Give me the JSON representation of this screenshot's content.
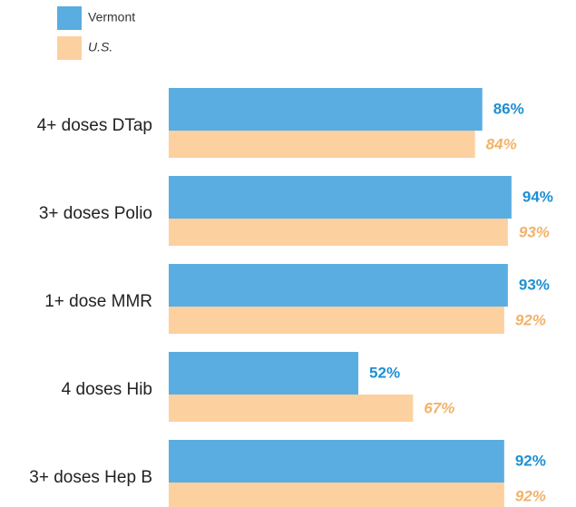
{
  "chart_data": {
    "type": "bar",
    "orientation": "horizontal",
    "categories": [
      "4+ doses DTap",
      "3+ doses Polio",
      "1+ dose MMR",
      "4 doses Hib",
      "3+ doses Hep B"
    ],
    "series": [
      {
        "name": "Vermont",
        "color": "#5aade0",
        "label_color": "#1f8fd2",
        "values": [
          86,
          94,
          93,
          52,
          92
        ],
        "value_labels": [
          "86%",
          "94%",
          "93%",
          "52%",
          "92%"
        ]
      },
      {
        "name": "U.S.",
        "color": "#fdd0a0",
        "label_color": "#f2b268",
        "values": [
          84,
          93,
          92,
          67,
          92
        ],
        "value_labels": [
          "84%",
          "93%",
          "92%",
          "67%",
          "92%"
        ]
      }
    ],
    "xlim": [
      0,
      100
    ],
    "legend": "top-left"
  }
}
